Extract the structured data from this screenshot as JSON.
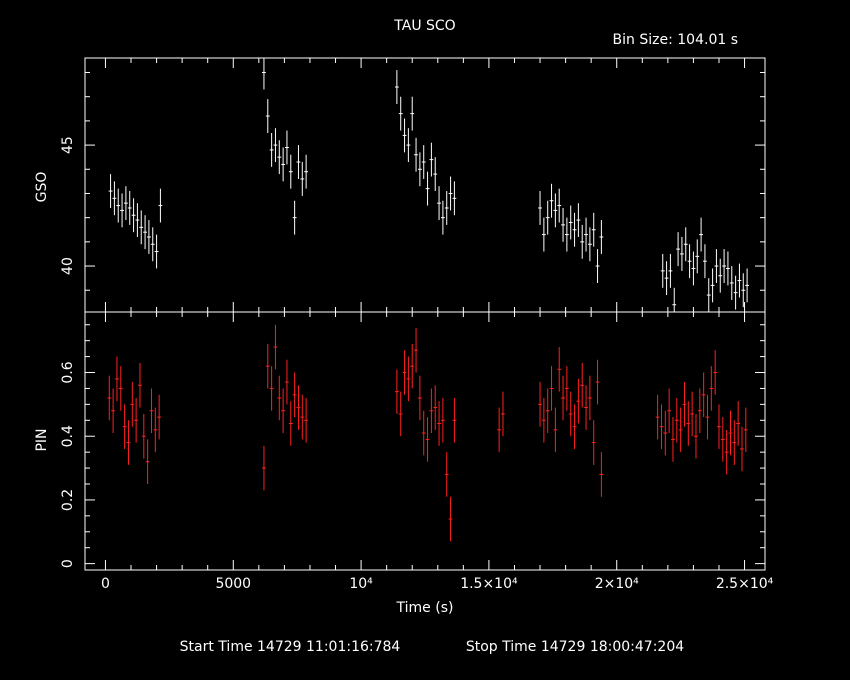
{
  "header": {
    "title": "TAU SCO",
    "bin_size": "Bin Size: 104.01 s"
  },
  "footer": {
    "start_time": "Start Time 14729 11:01:16:784",
    "stop_time": "Stop Time 14729 18:00:47:204"
  },
  "colors": {
    "gso": "#ffffff",
    "pin": "#ff2020",
    "axes": "#ffffff",
    "background": "#000000"
  },
  "chart_data": [
    {
      "type": "scatter",
      "ylabel": "GSO",
      "xlabel": "",
      "xlim": [
        -800,
        25800
      ],
      "ylim": [
        38.1,
        48.6
      ],
      "yticks": [
        40,
        45
      ],
      "xticks": [
        0,
        5000,
        10000,
        15000,
        20000,
        25000
      ],
      "series": [
        {
          "color": "#ffffff",
          "x": [
            200,
            350,
            500,
            650,
            800,
            950,
            1100,
            1250,
            1400,
            1550,
            1700,
            1850,
            2000,
            2150,
            6200,
            6350,
            6500,
            6650,
            6800,
            6950,
            7100,
            7250,
            7400,
            7550,
            7700,
            7850,
            11400,
            11550,
            11700,
            11850,
            12000,
            12150,
            12300,
            12450,
            12600,
            12750,
            12900,
            13050,
            13200,
            13350,
            13500,
            13650,
            17000,
            17150,
            17300,
            17450,
            17600,
            17750,
            17900,
            18050,
            18200,
            18350,
            18500,
            18650,
            18800,
            18950,
            19100,
            19250,
            19400,
            21800,
            21950,
            22100,
            22250,
            22400,
            22550,
            22700,
            22850,
            23000,
            23150,
            23300,
            23450,
            23600,
            23750,
            23900,
            24050,
            24200,
            24350,
            24500,
            24650,
            24800,
            24950,
            25100
          ],
          "y": [
            43.1,
            42.8,
            42.5,
            42.3,
            42.6,
            42.4,
            42.1,
            41.9,
            41.6,
            41.4,
            41.2,
            40.9,
            40.6,
            42.5,
            48.0,
            46.2,
            44.8,
            45.0,
            44.5,
            44.2,
            44.9,
            43.9,
            42.0,
            44.3,
            43.6,
            43.9,
            47.4,
            46.3,
            45.4,
            45.0,
            46.3,
            44.6,
            44.0,
            44.3,
            43.2,
            44.4,
            43.8,
            42.6,
            42.0,
            42.4,
            43.0,
            42.8,
            42.4,
            41.3,
            42.0,
            42.7,
            42.3,
            42.5,
            41.7,
            41.3,
            41.8,
            41.5,
            41.9,
            41.0,
            41.3,
            40.9,
            41.5,
            40.0,
            41.2,
            39.8,
            39.5,
            39.8,
            38.4,
            40.7,
            40.5,
            40.9,
            40.2,
            39.9,
            40.4,
            41.3,
            40.2,
            38.8,
            39.2,
            40.0,
            39.6,
            40.0,
            39.9,
            39.3,
            38.9,
            39.4,
            39.0,
            39.2
          ],
          "yerr": 0.7
        }
      ]
    },
    {
      "type": "scatter",
      "ylabel": "PIN",
      "xlabel": "Time (s)",
      "xlim": [
        -800,
        25800
      ],
      "ylim": [
        -0.02,
        0.79
      ],
      "yticks": [
        0,
        0.2,
        0.4,
        0.6
      ],
      "ytick_labels": [
        "0",
        "0.2",
        "0.4",
        "0.6"
      ],
      "xticks": [
        0,
        5000,
        10000,
        15000,
        20000,
        25000
      ],
      "xtick_labels": [
        "0",
        "5000",
        "10⁴",
        "1.5×10⁴",
        "2×10⁴",
        "2.5×10⁴"
      ],
      "series": [
        {
          "color": "#ff2020",
          "x": [
            150,
            300,
            450,
            600,
            750,
            900,
            1050,
            1200,
            1350,
            1500,
            1650,
            1800,
            1950,
            2100,
            6200,
            6350,
            6500,
            6650,
            6800,
            6950,
            7100,
            7250,
            7400,
            7550,
            7700,
            7850,
            11400,
            11550,
            11700,
            11850,
            12000,
            12150,
            12300,
            12450,
            12600,
            12750,
            12900,
            13050,
            13200,
            13350,
            13500,
            13650,
            15400,
            15550,
            17000,
            17150,
            17300,
            17450,
            17600,
            17750,
            17900,
            18050,
            18200,
            18350,
            18500,
            18650,
            18800,
            18950,
            19100,
            19250,
            19400,
            21600,
            21750,
            21900,
            22050,
            22200,
            22350,
            22500,
            22650,
            22800,
            22950,
            23100,
            23250,
            23400,
            23550,
            23700,
            23850,
            24000,
            24150,
            24300,
            24450,
            24600,
            24750,
            24900,
            25050
          ],
          "y": [
            0.52,
            0.48,
            0.58,
            0.55,
            0.43,
            0.38,
            0.5,
            0.45,
            0.56,
            0.4,
            0.32,
            0.48,
            0.42,
            0.46,
            0.3,
            0.62,
            0.55,
            0.68,
            0.52,
            0.48,
            0.57,
            0.44,
            0.53,
            0.49,
            0.46,
            0.45,
            0.54,
            0.47,
            0.6,
            0.58,
            0.62,
            0.67,
            0.52,
            0.41,
            0.39,
            0.48,
            0.49,
            0.44,
            0.45,
            0.28,
            0.14,
            0.45,
            0.42,
            0.47,
            0.5,
            0.45,
            0.48,
            0.55,
            0.42,
            0.61,
            0.52,
            0.55,
            0.47,
            0.43,
            0.51,
            0.56,
            0.49,
            0.52,
            0.38,
            0.57,
            0.28,
            0.46,
            0.43,
            0.41,
            0.48,
            0.39,
            0.45,
            0.42,
            0.5,
            0.44,
            0.47,
            0.4,
            0.48,
            0.53,
            0.46,
            0.55,
            0.6,
            0.43,
            0.39,
            0.35,
            0.41,
            0.38,
            0.44,
            0.36,
            0.42
          ],
          "yerr": 0.07
        }
      ]
    }
  ]
}
